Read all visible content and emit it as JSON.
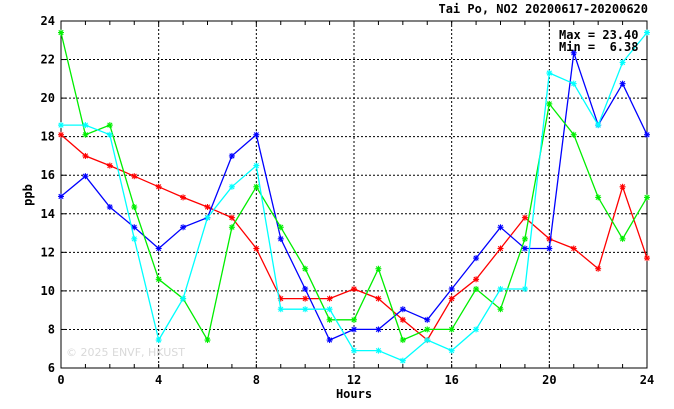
{
  "chart_data": {
    "type": "line",
    "title": "Tai Po, NO2 20200617-20200620",
    "xlabel": "Hours",
    "ylabel": "ppb",
    "xlim": [
      0,
      24
    ],
    "ylim": [
      6,
      24
    ],
    "x_ticks": [
      0,
      4,
      8,
      12,
      16,
      20,
      24
    ],
    "y_ticks": [
      6,
      8,
      10,
      12,
      14,
      16,
      18,
      20,
      22,
      24
    ],
    "grid": true,
    "x": [
      0,
      1,
      2,
      3,
      4,
      5,
      6,
      7,
      8,
      9,
      10,
      11,
      12,
      13,
      14,
      15,
      16,
      17,
      18,
      19,
      20,
      21,
      22,
      23,
      24
    ],
    "stats": {
      "max_text": "Max = 23.40",
      "min_text": "Min =  6.38"
    },
    "watermark": "© 2025  ENVF, HKUST",
    "series": [
      {
        "color": "#ff0000",
        "values": [
          18.1,
          17.0,
          16.5,
          15.95,
          15.4,
          14.85,
          14.35,
          13.8,
          12.2,
          9.6,
          9.6,
          9.6,
          10.1,
          9.6,
          8.5,
          7.45,
          9.6,
          10.6,
          12.2,
          13.8,
          12.7,
          12.2,
          11.15,
          15.4,
          11.7
        ]
      },
      {
        "color": "#0000ff",
        "values": [
          14.9,
          15.95,
          14.35,
          13.3,
          12.2,
          13.3,
          13.8,
          17.0,
          18.1,
          12.7,
          10.1,
          7.45,
          8.0,
          8.0,
          9.05,
          8.5,
          10.1,
          11.7,
          13.3,
          12.2,
          12.2,
          22.35,
          18.6,
          20.75,
          18.1
        ]
      },
      {
        "color": "#00ee00",
        "values": [
          23.4,
          18.1,
          18.6,
          14.35,
          10.6,
          9.6,
          7.45,
          13.3,
          15.4,
          13.3,
          11.15,
          8.5,
          8.5,
          11.15,
          7.45,
          8.0,
          8.0,
          10.1,
          9.05,
          12.7,
          19.7,
          18.1,
          14.85,
          12.7,
          14.85
        ]
      },
      {
        "color": "#00ffff",
        "values": [
          18.6,
          18.6,
          18.1,
          12.7,
          7.45,
          9.6,
          13.8,
          15.4,
          16.5,
          9.05,
          9.05,
          9.05,
          6.9,
          6.9,
          6.38,
          7.45,
          6.9,
          8.0,
          10.1,
          10.1,
          21.3,
          20.75,
          18.6,
          21.85,
          23.4
        ]
      }
    ]
  }
}
